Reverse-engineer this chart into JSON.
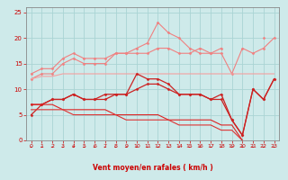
{
  "x": [
    0,
    1,
    2,
    3,
    4,
    5,
    6,
    7,
    8,
    9,
    10,
    11,
    12,
    13,
    14,
    15,
    16,
    17,
    18,
    19,
    20,
    21,
    22,
    23
  ],
  "series": [
    {
      "label": "light_top_envelope",
      "color": "#f08080",
      "lw": 0.8,
      "marker": "D",
      "ms": 1.5,
      "y": [
        12,
        13,
        13,
        15,
        16,
        15,
        15,
        15,
        17,
        17,
        17,
        17,
        18,
        18,
        17,
        17,
        18,
        17,
        17,
        13,
        18,
        17,
        18,
        20
      ]
    },
    {
      "label": "light_peak",
      "color": "#f08080",
      "lw": 0.8,
      "marker": "D",
      "ms": 1.5,
      "y": [
        13,
        14,
        14,
        16,
        17,
        16,
        16,
        16,
        17,
        17,
        18,
        19,
        23,
        21,
        20,
        18,
        17,
        17,
        18,
        null,
        null,
        null,
        20,
        null
      ]
    },
    {
      "label": "light_flat",
      "color": "#f4a0a0",
      "lw": 0.8,
      "marker": null,
      "ms": 0,
      "y": [
        12,
        12.5,
        12.5,
        13,
        13,
        13,
        13,
        13,
        13,
        13,
        13,
        13,
        13,
        13,
        13,
        13,
        13,
        13,
        13,
        13,
        13,
        13,
        13,
        13
      ]
    },
    {
      "label": "dark_upper",
      "color": "#cc2222",
      "lw": 0.9,
      "marker": "D",
      "ms": 1.5,
      "y": [
        7,
        7,
        8,
        8,
        9,
        8,
        8,
        8,
        9,
        9,
        13,
        12,
        12,
        11,
        9,
        9,
        9,
        8,
        8,
        4,
        1,
        10,
        8,
        12
      ]
    },
    {
      "label": "dark_mid",
      "color": "#cc2222",
      "lw": 0.9,
      "marker": "D",
      "ms": 1.5,
      "y": [
        5,
        7,
        8,
        8,
        9,
        8,
        8,
        9,
        9,
        9,
        10,
        11,
        11,
        10,
        9,
        9,
        9,
        8,
        9,
        4,
        1,
        10,
        8,
        12
      ]
    },
    {
      "label": "diagonal_down1",
      "color": "#dd2222",
      "lw": 0.8,
      "marker": null,
      "ms": 0,
      "y": [
        7,
        7,
        7,
        6,
        6,
        6,
        6,
        6,
        5,
        5,
        5,
        5,
        5,
        4,
        4,
        4,
        4,
        4,
        3,
        3,
        0,
        null,
        null,
        null
      ]
    },
    {
      "label": "diagonal_down2",
      "color": "#dd3333",
      "lw": 0.8,
      "marker": null,
      "ms": 0,
      "y": [
        6,
        6,
        6,
        6,
        5,
        5,
        5,
        5,
        5,
        4,
        4,
        4,
        4,
        4,
        3,
        3,
        3,
        3,
        2,
        2,
        0,
        null,
        null,
        null
      ]
    }
  ],
  "xlim": [
    -0.5,
    23.5
  ],
  "ylim": [
    0,
    26
  ],
  "yticks": [
    0,
    5,
    10,
    15,
    20,
    25
  ],
  "xticks": [
    0,
    1,
    2,
    3,
    4,
    5,
    6,
    7,
    8,
    9,
    10,
    11,
    12,
    13,
    14,
    15,
    16,
    17,
    18,
    19,
    20,
    21,
    22,
    23
  ],
  "xlabel": "Vent moyen/en rafales ( km/h )",
  "bg_color": "#ceeaea",
  "grid_color": "#aad4d4",
  "tick_color": "#cc0000",
  "label_color": "#cc0000",
  "spine_color": "#888888"
}
